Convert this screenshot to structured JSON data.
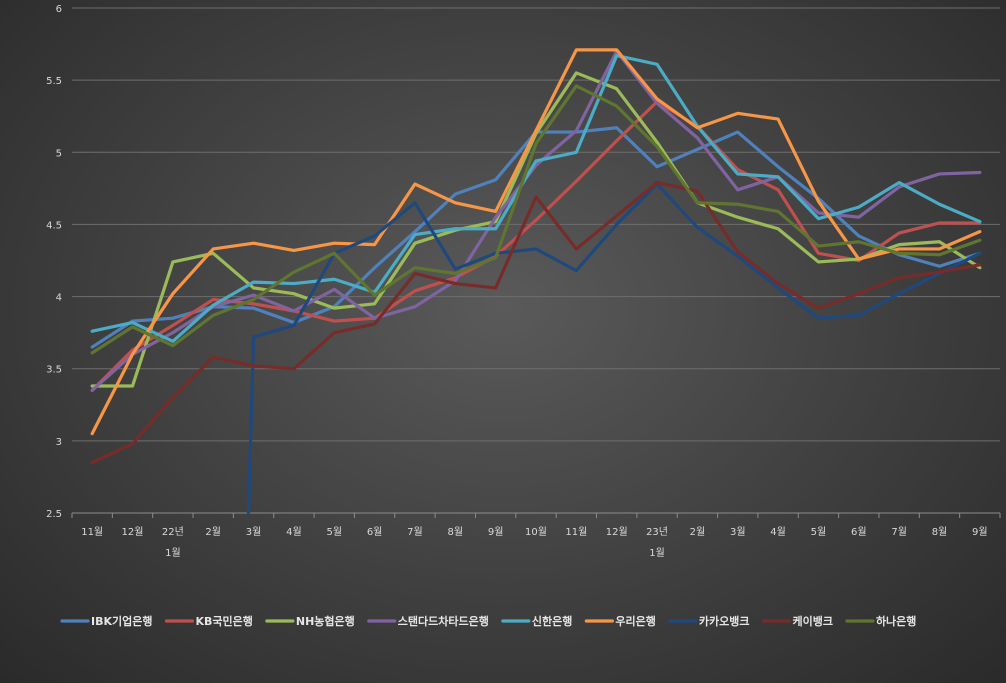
{
  "chart_data": {
    "type": "line",
    "ylim": [
      2.5,
      6
    ],
    "yticks": [
      "2.5",
      "3",
      "3.5",
      "4",
      "4.5",
      "5",
      "5.5",
      "6"
    ],
    "grid": true,
    "legend_position": "bottom",
    "x": [
      {
        "line1": "11월",
        "line2": ""
      },
      {
        "line1": "12월",
        "line2": ""
      },
      {
        "line1": "22년",
        "line2": "1월"
      },
      {
        "line1": "2월",
        "line2": ""
      },
      {
        "line1": "3월",
        "line2": ""
      },
      {
        "line1": "4월",
        "line2": ""
      },
      {
        "line1": "5월",
        "line2": ""
      },
      {
        "line1": "6월",
        "line2": ""
      },
      {
        "line1": "7월",
        "line2": ""
      },
      {
        "line1": "8월",
        "line2": ""
      },
      {
        "line1": "9월",
        "line2": ""
      },
      {
        "line1": "10월",
        "line2": ""
      },
      {
        "line1": "11월",
        "line2": ""
      },
      {
        "line1": "12월",
        "line2": ""
      },
      {
        "line1": "23년",
        "line2": "1월"
      },
      {
        "line1": "2월",
        "line2": ""
      },
      {
        "line1": "3월",
        "line2": ""
      },
      {
        "line1": "4월",
        "line2": ""
      },
      {
        "line1": "5월",
        "line2": ""
      },
      {
        "line1": "6월",
        "line2": ""
      },
      {
        "line1": "7월",
        "line2": ""
      },
      {
        "line1": "8월",
        "line2": ""
      },
      {
        "line1": "9월",
        "line2": ""
      }
    ],
    "series": [
      {
        "name": "IBK기업은행",
        "color": "#4f81bd",
        "values": [
          3.65,
          3.83,
          3.85,
          3.93,
          3.92,
          3.82,
          3.93,
          4.2,
          4.45,
          4.71,
          4.81,
          5.14,
          5.14,
          5.17,
          4.9,
          5.02,
          5.14,
          4.9,
          4.68,
          4.42,
          4.29,
          4.21,
          4.3
        ]
      },
      {
        "name": "KB국민은행",
        "color": "#c0504d",
        "values": [
          3.35,
          3.63,
          3.8,
          3.98,
          3.95,
          3.9,
          3.83,
          3.85,
          4.04,
          4.13,
          4.28,
          4.53,
          4.8,
          5.08,
          5.35,
          5.18,
          4.88,
          4.74,
          4.3,
          4.25,
          4.44,
          4.51,
          4.51
        ]
      },
      {
        "name": "NH농협은행",
        "color": "#9bbb59",
        "values": [
          3.38,
          3.38,
          4.24,
          4.3,
          4.06,
          4.02,
          3.92,
          3.95,
          4.37,
          4.46,
          4.52,
          5.13,
          5.55,
          5.44,
          5.07,
          4.65,
          4.55,
          4.47,
          4.24,
          4.26,
          4.36,
          4.38,
          4.2
        ]
      },
      {
        "name": "스탠다드차타드은행",
        "color": "#8064a2",
        "values": [
          3.35,
          3.6,
          3.75,
          3.93,
          4.01,
          3.9,
          4.05,
          3.85,
          3.93,
          4.11,
          4.55,
          4.91,
          5.15,
          5.7,
          5.34,
          5.1,
          4.74,
          4.83,
          4.58,
          4.55,
          4.76,
          4.85,
          4.86
        ]
      },
      {
        "name": "신한은행",
        "color": "#4bacc6",
        "values": [
          3.76,
          3.82,
          3.69,
          3.94,
          4.1,
          4.09,
          4.12,
          4.03,
          4.43,
          4.47,
          4.47,
          4.94,
          5.0,
          5.67,
          5.61,
          5.18,
          4.85,
          4.83,
          4.54,
          4.62,
          4.79,
          4.64,
          4.52
        ]
      },
      {
        "name": "우리은행",
        "color": "#f79646",
        "values": [
          3.05,
          3.6,
          4.02,
          4.33,
          4.37,
          4.32,
          4.37,
          4.36,
          4.78,
          4.65,
          4.59,
          5.15,
          5.71,
          5.71,
          5.37,
          5.17,
          5.27,
          5.23,
          4.66,
          4.26,
          4.33,
          4.33,
          4.45
        ]
      },
      {
        "name": "카카오뱅크",
        "color": "#1f497d",
        "values": [
          null,
          null,
          null,
          null,
          3.72,
          3.8,
          4.3,
          4.42,
          4.65,
          4.19,
          4.3,
          4.33,
          4.18,
          4.5,
          4.78,
          4.48,
          4.28,
          4.06,
          3.85,
          3.87,
          4.02,
          4.16,
          4.3
        ]
      },
      {
        "name": "케이뱅크",
        "color": "#772c2a",
        "values": [
          2.85,
          2.98,
          3.3,
          3.58,
          3.52,
          3.5,
          3.75,
          3.81,
          4.16,
          4.09,
          4.06,
          4.69,
          4.33,
          4.56,
          4.79,
          4.73,
          4.31,
          4.09,
          3.92,
          4.02,
          4.13,
          4.17,
          4.22
        ]
      },
      {
        "name": "하나은행",
        "color": "#5f7530",
        "values": [
          3.61,
          3.79,
          3.66,
          3.87,
          3.98,
          4.17,
          4.3,
          4.01,
          4.2,
          4.16,
          4.27,
          5.06,
          5.46,
          5.32,
          5.04,
          4.65,
          4.64,
          4.59,
          4.35,
          4.38,
          4.3,
          4.29,
          4.39
        ]
      }
    ]
  }
}
